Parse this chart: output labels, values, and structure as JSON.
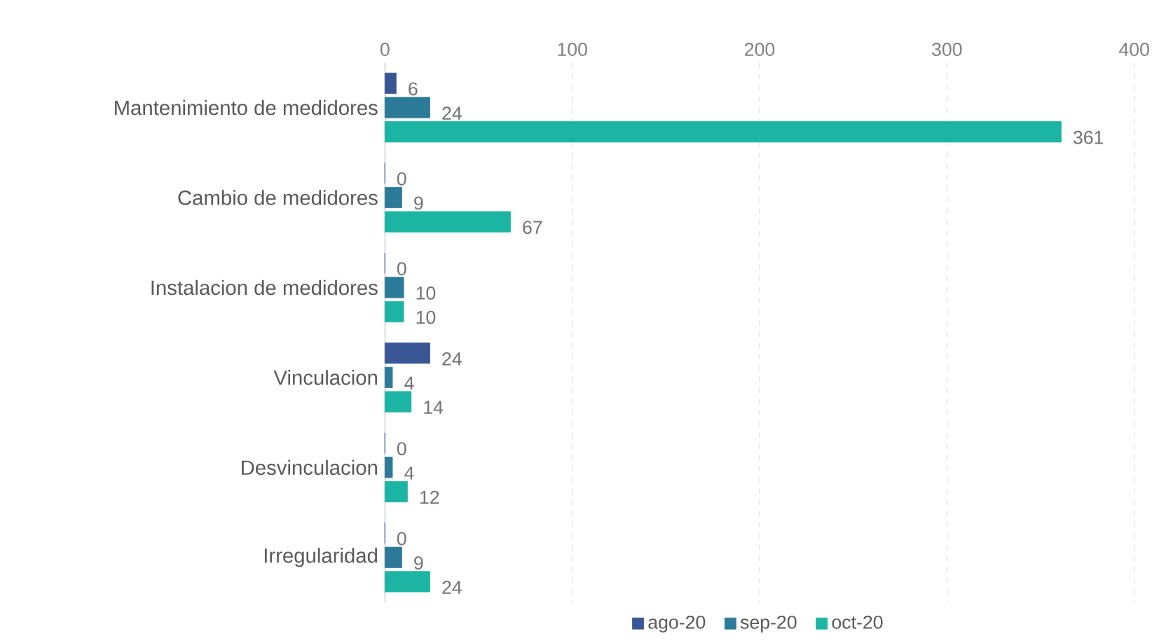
{
  "chart_data": {
    "type": "bar",
    "orientation": "horizontal",
    "categories": [
      "Mantenimiento de medidores",
      "Cambio de medidores",
      "Instalacion de medidores",
      "Vinculacion",
      "Desvinculacion",
      "Irregularidad"
    ],
    "series": [
      {
        "name": "ago-20",
        "color": "#3a5795",
        "values": [
          6,
          0,
          0,
          24,
          0,
          0
        ]
      },
      {
        "name": "sep-20",
        "color": "#2b7a98",
        "values": [
          24,
          9,
          10,
          4,
          4,
          9
        ]
      },
      {
        "name": "oct-20",
        "color": "#1cb5a3",
        "values": [
          361,
          67,
          10,
          14,
          12,
          24
        ]
      }
    ],
    "xlim": [
      0,
      400
    ],
    "xticks": [
      0,
      100,
      200,
      300,
      400
    ],
    "grid": "x",
    "data_labels": true,
    "legend": "bottom"
  }
}
